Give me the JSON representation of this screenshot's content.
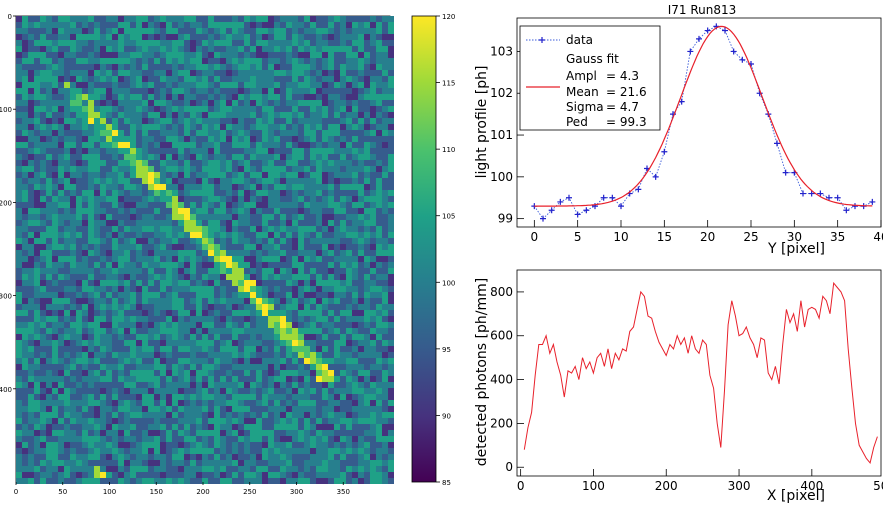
{
  "chart_data": [
    {
      "type": "heatmap",
      "xlim": [
        0,
        400
      ],
      "ylim": [
        0,
        500
      ],
      "x_ticks": [
        "0",
        "50",
        "100",
        "150",
        "200",
        "250",
        "300",
        "350"
      ],
      "y_ticks": [
        "0",
        "100",
        "200",
        "300",
        "400"
      ],
      "colormap": "viridis",
      "colorbar_range": [
        85,
        120
      ],
      "colorbar_ticks": [
        "120",
        "115",
        "110",
        "105",
        "100",
        "95",
        "90",
        "85"
      ],
      "background_value": 99,
      "track": {
        "start": [
          55,
          75
        ],
        "end": [
          330,
          385
        ]
      },
      "bright_blob": [
        85,
        488
      ]
    },
    {
      "type": "line",
      "title": "I71 Run813",
      "xlabel": "Y [pixel]",
      "ylabel": "light profile [ph]",
      "xlim": [
        -2,
        40
      ],
      "ylim": [
        98.8,
        103.8
      ],
      "x_ticks": [
        "0",
        "5",
        "10",
        "15",
        "20",
        "25",
        "30",
        "35",
        "40"
      ],
      "y_ticks": [
        "99",
        "100",
        "101",
        "102",
        "103"
      ],
      "series": [
        {
          "name": "data",
          "style": "markers + dotted line",
          "color": "#3a5bd9",
          "x": [
            0,
            1,
            2,
            3,
            4,
            5,
            6,
            7,
            8,
            9,
            10,
            11,
            12,
            13,
            14,
            15,
            16,
            17,
            18,
            19,
            20,
            21,
            22,
            23,
            24,
            25,
            26,
            27,
            28,
            29,
            30,
            31,
            32,
            33,
            34,
            35,
            36,
            37,
            38,
            39
          ],
          "values": [
            99.3,
            99.0,
            99.2,
            99.4,
            99.5,
            99.1,
            99.2,
            99.3,
            99.5,
            99.5,
            99.3,
            99.6,
            99.7,
            100.2,
            100.0,
            100.6,
            101.5,
            101.8,
            103.0,
            103.3,
            103.5,
            103.6,
            103.5,
            103.0,
            102.8,
            102.7,
            102.0,
            101.5,
            100.8,
            100.1,
            100.1,
            99.6,
            99.6,
            99.6,
            99.5,
            99.5,
            99.2,
            99.3,
            99.3,
            99.4
          ]
        },
        {
          "name": "Gauss fit",
          "style": "line",
          "color": "#e8212b",
          "function": "gauss",
          "ampl": 4.3,
          "mean": 21.6,
          "sigma": 4.7,
          "ped": 99.3,
          "x_range": [
            0,
            39
          ]
        }
      ],
      "legend": {
        "position": "top-left",
        "entries": [
          {
            "label": "data"
          },
          {
            "label": "Gauss fit"
          },
          {
            "label": "Ampl",
            "value": "= 4.3"
          },
          {
            "label": "Mean",
            "value": "= 21.6"
          },
          {
            "label": "Sigma",
            "value": "= 4.7"
          },
          {
            "label": "Ped",
            "value": "= 99.3"
          }
        ]
      }
    },
    {
      "type": "line",
      "xlabel": "X [pixel]",
      "ylabel": "detected photons [ph/mm]",
      "xlim": [
        -5,
        495
      ],
      "ylim": [
        -40,
        900
      ],
      "x_ticks": [
        "0",
        "100",
        "200",
        "300",
        "400",
        "500"
      ],
      "y_ticks": [
        "0",
        "200",
        "400",
        "600",
        "800"
      ],
      "series": [
        {
          "style": "line",
          "color": "#e8212b",
          "x": [
            5,
            10,
            15,
            20,
            25,
            30,
            35,
            40,
            45,
            50,
            55,
            60,
            65,
            70,
            75,
            80,
            85,
            90,
            95,
            100,
            105,
            110,
            115,
            120,
            125,
            130,
            135,
            140,
            145,
            150,
            155,
            160,
            165,
            170,
            175,
            180,
            185,
            190,
            195,
            200,
            205,
            210,
            215,
            220,
            225,
            230,
            235,
            240,
            245,
            250,
            255,
            260,
            265,
            270,
            275,
            280,
            285,
            290,
            295,
            300,
            305,
            310,
            315,
            320,
            325,
            330,
            335,
            340,
            345,
            350,
            355,
            360,
            365,
            370,
            375,
            380,
            385,
            390,
            395,
            400,
            405,
            410,
            415,
            420,
            425,
            430,
            435,
            440,
            445,
            450,
            455,
            460,
            465,
            470,
            475,
            480,
            485,
            490
          ],
          "values": [
            80,
            180,
            250,
            420,
            560,
            560,
            600,
            520,
            560,
            480,
            420,
            320,
            440,
            430,
            460,
            400,
            500,
            450,
            480,
            430,
            500,
            520,
            460,
            540,
            450,
            520,
            490,
            540,
            530,
            620,
            640,
            720,
            800,
            780,
            690,
            680,
            620,
            570,
            540,
            510,
            560,
            540,
            600,
            560,
            590,
            520,
            600,
            540,
            520,
            580,
            560,
            420,
            360,
            200,
            90,
            350,
            650,
            760,
            690,
            600,
            610,
            640,
            590,
            560,
            500,
            590,
            580,
            430,
            400,
            460,
            380,
            560,
            720,
            660,
            700,
            620,
            760,
            640,
            720,
            730,
            720,
            680,
            780,
            760,
            700,
            840,
            820,
            800,
            760,
            540,
            360,
            200,
            100,
            70,
            40,
            20,
            90,
            140
          ]
        }
      ]
    }
  ]
}
